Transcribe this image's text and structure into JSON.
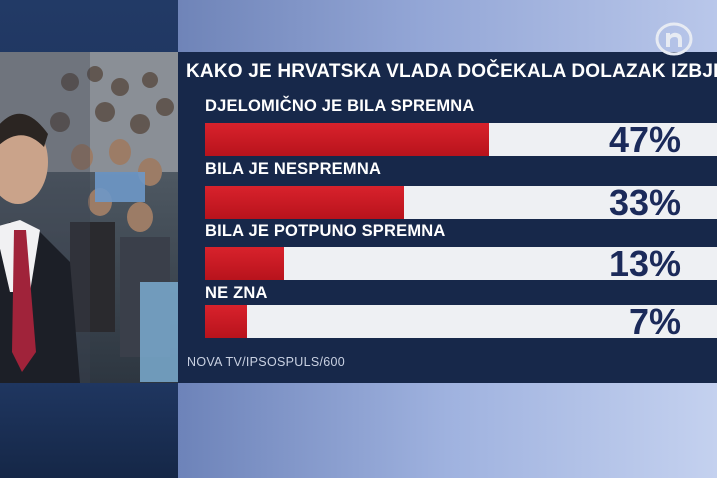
{
  "title": "KAKO JE HRVATSKA VLADA DOČEKALA DOLAZAK IZBJEGLICA",
  "source": "NOVA TV/IPSOSPULS/600",
  "logo": {
    "icon": "nova-tv-logo-icon",
    "letter": "n"
  },
  "colors": {
    "bar": "#c8161f",
    "track": "#eef0f3",
    "value_text": "#1b2a5a",
    "panel": "#17284a"
  },
  "chart_data": {
    "type": "bar",
    "orientation": "horizontal",
    "title": "KAKO JE HRVATSKA VLADA DOČEKALA DOLAZAK IZBJEGLICA",
    "categories": [
      "DJELOMIČNO JE BILA SPREMNA",
      "BILA JE NESPREMNA",
      "BILA JE POTPUNO SPREMNA",
      "NE ZNA"
    ],
    "values": [
      47,
      33,
      13,
      7
    ],
    "value_labels": [
      "47%",
      "33%",
      "13%",
      "7%"
    ],
    "xlim": [
      0,
      100
    ],
    "grid": false
  }
}
